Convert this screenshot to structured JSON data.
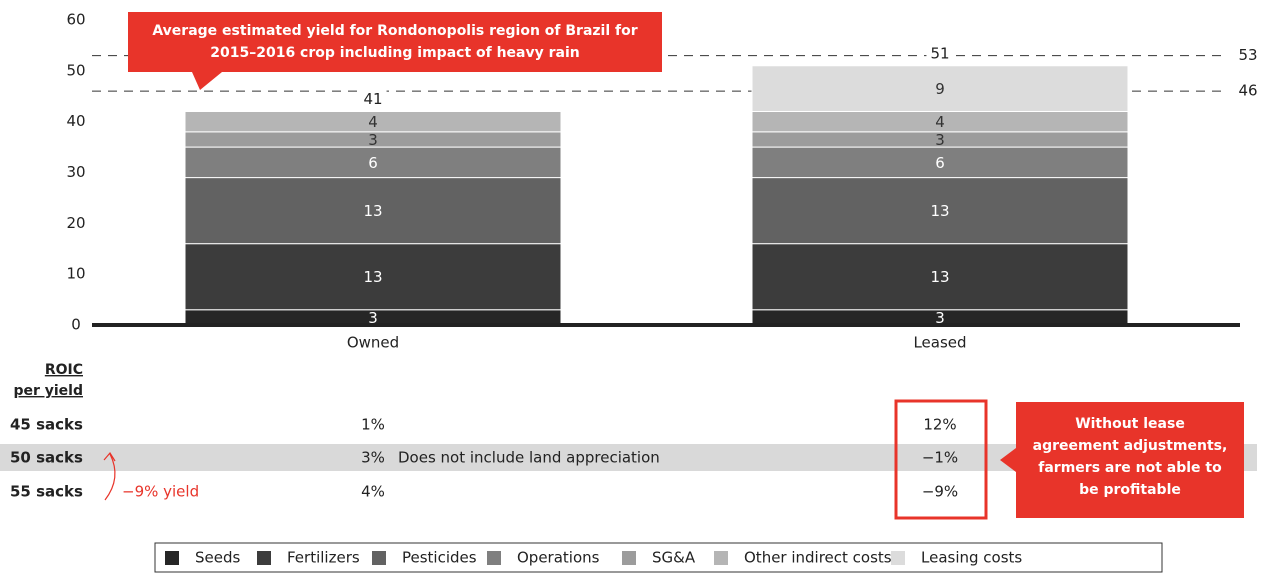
{
  "chart_data": {
    "type": "stacked_bar",
    "categories": [
      "Owned",
      "Leased"
    ],
    "series": [
      {
        "name": "Seeds",
        "color": "#262626",
        "values": [
          3,
          3
        ]
      },
      {
        "name": "Fertilizers",
        "color": "#3c3c3c",
        "values": [
          13,
          13
        ]
      },
      {
        "name": "Pesticides",
        "color": "#626262",
        "values": [
          13,
          13
        ]
      },
      {
        "name": "Operations",
        "color": "#7f7f7f",
        "values": [
          6,
          6
        ]
      },
      {
        "name": "SG&A",
        "color": "#9c9c9c",
        "values": [
          3,
          3
        ]
      },
      {
        "name": "Other indirect costs",
        "color": "#b5b5b5",
        "values": [
          4,
          4
        ]
      },
      {
        "name": "Leasing costs",
        "color": "#dcdcdc",
        "values": [
          null,
          9
        ]
      }
    ],
    "totals": [
      41,
      51
    ],
    "ylim": [
      0,
      60
    ],
    "yticks": [
      0,
      10,
      20,
      30,
      40,
      50,
      60
    ],
    "reference_lines": [
      53,
      46
    ],
    "annotation": [
      "Average estimated yield for Rondonopolis region of Brazil for",
      "2015–2016 crop including impact of heavy rain"
    ]
  },
  "table": {
    "header": [
      "ROIC",
      "per yield"
    ],
    "rows": [
      {
        "label": "45 sacks",
        "values": [
          "1%",
          "12%"
        ]
      },
      {
        "label": "50 sacks",
        "values": [
          "3%",
          "−1%"
        ]
      },
      {
        "label": "55 sacks",
        "values": [
          "4%",
          "−9%"
        ]
      }
    ],
    "note": "Does not include land appreciation",
    "yield_note": "−9% yield",
    "callout": [
      "Without lease",
      "agreement adjustments,",
      "farmers are not able to",
      "be profitable"
    ]
  }
}
